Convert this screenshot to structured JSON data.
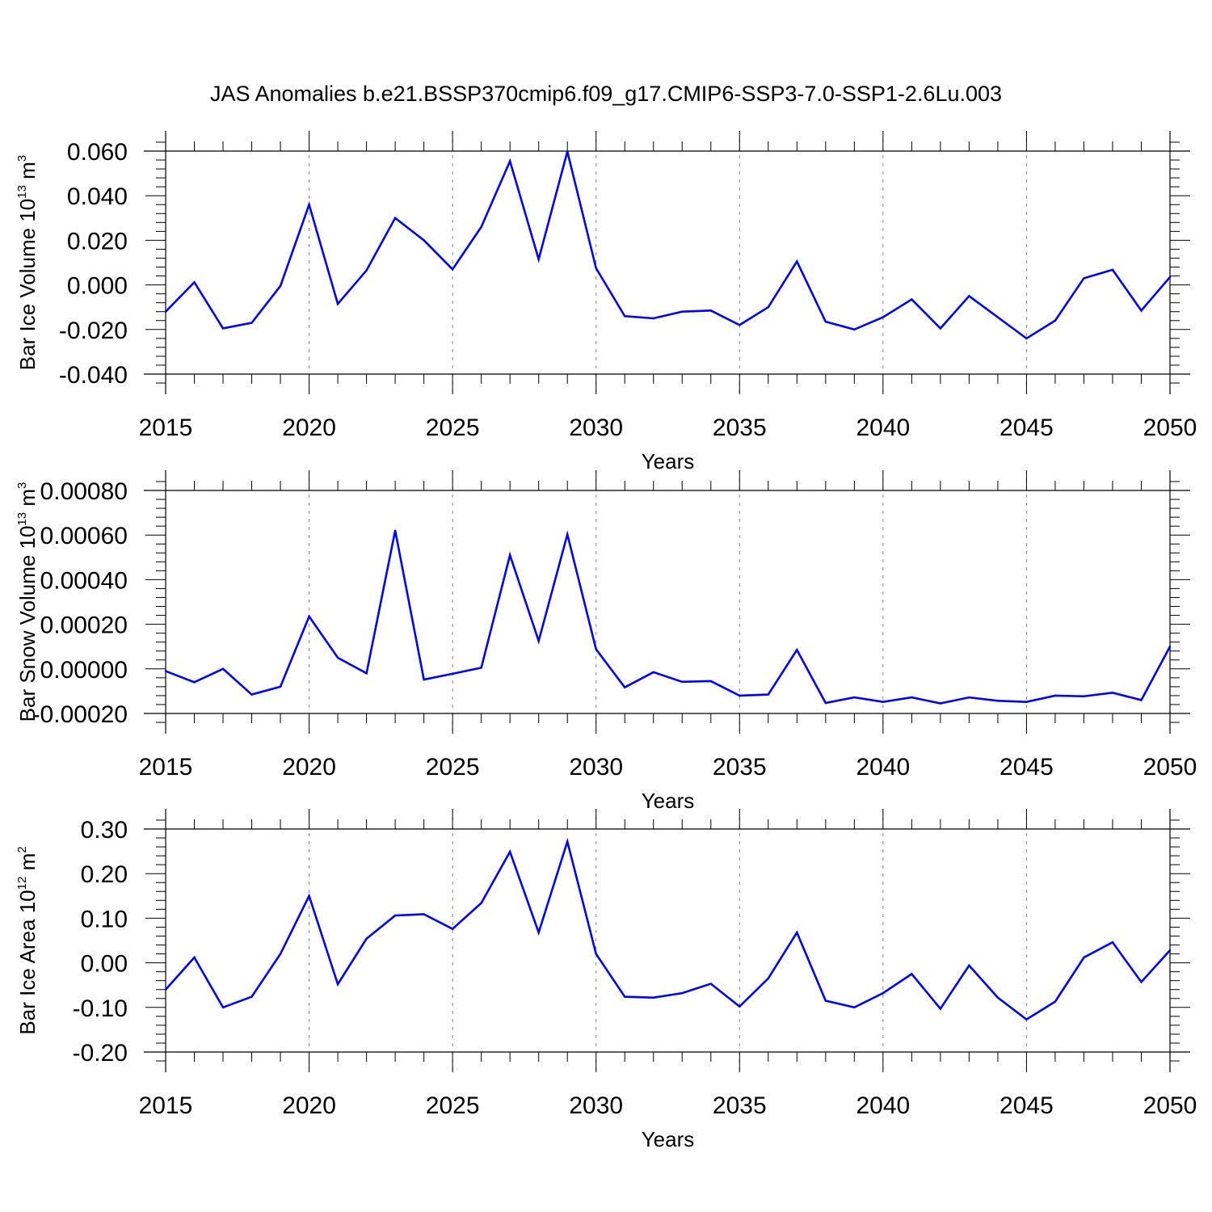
{
  "title": "JAS Anomalies b.e21.BSSP370cmip6.f09_g17.CMIP6-SSP3-7.0-SSP1-2.6Lu.003",
  "line_color": "#0000ff",
  "chart_data": [
    {
      "type": "line",
      "name": "bar-ice-volume",
      "title": "JAS Anomalies b.e21.BSSP370cmip6.f09_g17.CMIP6-SSP3-7.0-SSP1-2.6Lu.003",
      "xlabel": "Years",
      "ylabel": "Bar Ice Volume 10",
      "ylabel_exp": "13",
      "ylabel_unit": " m",
      "ylabel_unit_exp": "3",
      "xlim": [
        2015,
        2050
      ],
      "ylim": [
        -0.04,
        0.06
      ],
      "yticks": [
        -0.04,
        -0.02,
        0.0,
        0.02,
        0.04,
        0.06
      ],
      "ytick_labels": [
        "-0.040",
        "-0.020",
        "0.000",
        "0.020",
        "0.040",
        "0.060"
      ],
      "xticks": [
        2015,
        2020,
        2025,
        2030,
        2035,
        2040,
        2045,
        2050
      ],
      "xtick_labels": [
        "2015",
        "2020",
        "2025",
        "2030",
        "2035",
        "2040",
        "2045",
        "2050"
      ],
      "x": [
        2015,
        2016,
        2017,
        2018,
        2019,
        2020,
        2021,
        2022,
        2023,
        2024,
        2025,
        2026,
        2027,
        2028,
        2029,
        2030,
        2031,
        2032,
        2033,
        2034,
        2035,
        2036,
        2037,
        2038,
        2039,
        2040,
        2041,
        2042,
        2043,
        2044,
        2045,
        2046,
        2047,
        2048,
        2049,
        2050
      ],
      "values": [
        -0.012,
        0.0012,
        -0.0195,
        -0.017,
        -0.0005,
        0.036,
        -0.0085,
        0.0065,
        0.03,
        0.02,
        0.007,
        0.026,
        0.0555,
        0.0115,
        0.0598,
        0.0075,
        -0.014,
        -0.015,
        -0.012,
        -0.0115,
        -0.018,
        -0.01,
        0.0105,
        -0.0165,
        -0.02,
        -0.0145,
        -0.0065,
        -0.0195,
        -0.005,
        -0.0145,
        -0.024,
        -0.016,
        0.003,
        0.0068,
        -0.0115,
        0.0035
      ]
    },
    {
      "type": "line",
      "name": "bar-snow-volume",
      "xlabel": "Years",
      "ylabel": "Bar Snow Volume 10",
      "ylabel_exp": "13",
      "ylabel_unit": " m",
      "ylabel_unit_exp": "3",
      "xlim": [
        2015,
        2050
      ],
      "ylim": [
        -0.0002,
        0.0008
      ],
      "yticks": [
        -0.0002,
        0.0,
        0.0002,
        0.0004,
        0.0006,
        0.0008
      ],
      "ytick_labels": [
        "-0.00020",
        "0.00000",
        "0.00020",
        "0.00040",
        "0.00060",
        "0.00080"
      ],
      "xticks": [
        2015,
        2020,
        2025,
        2030,
        2035,
        2040,
        2045,
        2050
      ],
      "xtick_labels": [
        "2015",
        "2020",
        "2025",
        "2030",
        "2035",
        "2040",
        "2045",
        "2050"
      ],
      "x": [
        2015,
        2016,
        2017,
        2018,
        2019,
        2020,
        2021,
        2022,
        2023,
        2024,
        2025,
        2026,
        2027,
        2028,
        2029,
        2030,
        2031,
        2032,
        2033,
        2034,
        2035,
        2036,
        2037,
        2038,
        2039,
        2040,
        2041,
        2042,
        2043,
        2044,
        2045,
        2046,
        2047,
        2048,
        2049,
        2050
      ],
      "values": [
        -1e-05,
        -6e-05,
        0.0,
        -0.000115,
        -8e-05,
        0.000235,
        5e-05,
        -2e-05,
        0.00062,
        -4.8e-05,
        -2.2e-05,
        5e-06,
        0.00051,
        0.000125,
        0.000603,
        8.8e-05,
        -8.3e-05,
        -1.5e-05,
        -5.8e-05,
        -5.5e-05,
        -0.00012,
        -0.000115,
        8.5e-05,
        -0.000153,
        -0.000128,
        -0.000148,
        -0.000128,
        -0.000155,
        -0.000128,
        -0.000143,
        -0.000148,
        -0.00012,
        -0.000123,
        -0.000107,
        -0.00014,
        0.0001
      ]
    },
    {
      "type": "line",
      "name": "bar-ice-area",
      "xlabel": "Years",
      "ylabel": "Bar Ice Area 10",
      "ylabel_exp": "12",
      "ylabel_unit": " m",
      "ylabel_unit_exp": "2",
      "xlim": [
        2015,
        2050
      ],
      "ylim": [
        -0.2,
        0.3
      ],
      "yticks": [
        -0.2,
        -0.1,
        0.0,
        0.1,
        0.2,
        0.3
      ],
      "ytick_labels": [
        "-0.20",
        "-0.10",
        "0.00",
        "0.10",
        "0.20",
        "0.30"
      ],
      "xticks": [
        2015,
        2020,
        2025,
        2030,
        2035,
        2040,
        2045,
        2050
      ],
      "xtick_labels": [
        "2015",
        "2020",
        "2025",
        "2030",
        "2035",
        "2040",
        "2045",
        "2050"
      ],
      "x": [
        2015,
        2016,
        2017,
        2018,
        2019,
        2020,
        2021,
        2022,
        2023,
        2024,
        2025,
        2026,
        2027,
        2028,
        2029,
        2030,
        2031,
        2032,
        2033,
        2034,
        2035,
        2036,
        2037,
        2038,
        2039,
        2040,
        2041,
        2042,
        2043,
        2044,
        2045,
        2046,
        2047,
        2048,
        2049,
        2050
      ],
      "values": [
        -0.06,
        0.012,
        -0.1,
        -0.076,
        0.02,
        0.15,
        -0.048,
        0.054,
        0.106,
        0.109,
        0.076,
        0.134,
        0.249,
        0.068,
        0.272,
        0.02,
        -0.076,
        -0.078,
        -0.068,
        -0.047,
        -0.098,
        -0.035,
        0.068,
        -0.085,
        -0.1,
        -0.068,
        -0.025,
        -0.103,
        -0.006,
        -0.078,
        -0.127,
        -0.087,
        0.012,
        0.046,
        -0.043,
        0.028
      ]
    }
  ]
}
